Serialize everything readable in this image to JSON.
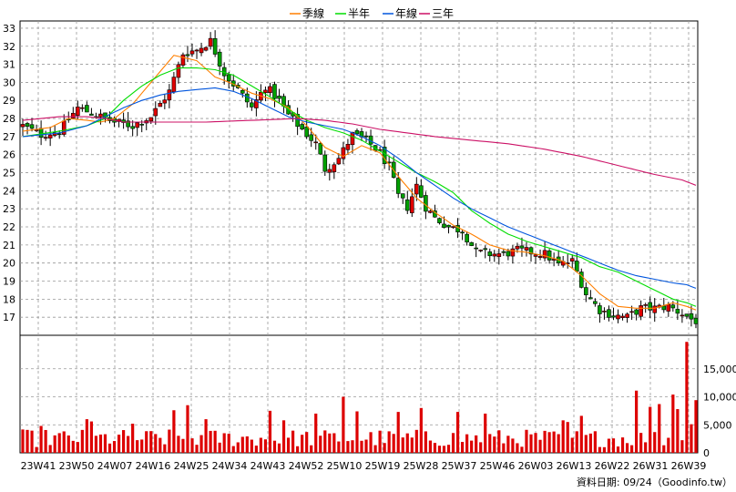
{
  "chart_data": {
    "type": "candlestick+volume",
    "legend": [
      {
        "label": "季線",
        "color": "#ff7f00"
      },
      {
        "label": "半年",
        "color": "#00dd00"
      },
      {
        "label": "年線",
        "color": "#0055dd"
      },
      {
        "label": "三年",
        "color": "#cc1166"
      }
    ],
    "price_axis": {
      "min": 16,
      "max": 33.4,
      "ticks": [
        17,
        18,
        19,
        20,
        21,
        22,
        23,
        24,
        25,
        26,
        27,
        28,
        29,
        30,
        31,
        32,
        33
      ]
    },
    "volume_axis": {
      "min": 0,
      "max": 20000,
      "ticks": [
        0,
        5000,
        10000,
        15000
      ],
      "tick_labels": [
        "0",
        "5,000",
        "10,000",
        "15,000"
      ]
    },
    "x_axis": {
      "labels": [
        "23W41",
        "23W50",
        "24W07",
        "24W16",
        "24W25",
        "24W34",
        "24W43",
        "24W52",
        "25W10",
        "25W19",
        "25W28",
        "25W37",
        "25W46",
        "26W03",
        "26W13",
        "26W22",
        "26W31",
        "26W39"
      ]
    },
    "close_anchors": [
      [
        0,
        27.6
      ],
      [
        4,
        27.1
      ],
      [
        8,
        27.3
      ],
      [
        12,
        28.6
      ],
      [
        16,
        28.2
      ],
      [
        20,
        27.8
      ],
      [
        24,
        27.6
      ],
      [
        28,
        28.1
      ],
      [
        32,
        29.5
      ],
      [
        35,
        31.6
      ],
      [
        38,
        31.8
      ],
      [
        41,
        32.3
      ],
      [
        44,
        30.5
      ],
      [
        47,
        29.6
      ],
      [
        50,
        28.6
      ],
      [
        53,
        29.8
      ],
      [
        56,
        29.0
      ],
      [
        58,
        28.2
      ],
      [
        61,
        27.4
      ],
      [
        64,
        26.6
      ],
      [
        66,
        25.2
      ],
      [
        69,
        25.8
      ],
      [
        72,
        27.1
      ],
      [
        75,
        26.8
      ],
      [
        78,
        26.1
      ],
      [
        80,
        25.3
      ],
      [
        82,
        23.7
      ],
      [
        84,
        23.1
      ],
      [
        86,
        24.3
      ],
      [
        88,
        23.1
      ],
      [
        90,
        22.5
      ],
      [
        93,
        22.0
      ],
      [
        96,
        21.8
      ],
      [
        99,
        20.6
      ],
      [
        102,
        20.5
      ],
      [
        105,
        20.5
      ],
      [
        108,
        20.7
      ],
      [
        111,
        20.6
      ],
      [
        114,
        20.5
      ],
      [
        117,
        19.9
      ],
      [
        120,
        20.1
      ],
      [
        123,
        18.3
      ],
      [
        126,
        17.4
      ],
      [
        129,
        17.1
      ],
      [
        132,
        17.0
      ],
      [
        135,
        17.5
      ],
      [
        138,
        17.5
      ],
      [
        141,
        17.6
      ],
      [
        144,
        17.2
      ],
      [
        146,
        16.9
      ],
      [
        147,
        16.8
      ]
    ],
    "ma_anchors": {
      "季線": [
        [
          0,
          27.3
        ],
        [
          6,
          27.5
        ],
        [
          10,
          28.0
        ],
        [
          14,
          27.9
        ],
        [
          17,
          27.8
        ],
        [
          20,
          28.0
        ],
        [
          24,
          28.8
        ],
        [
          28,
          30.0
        ],
        [
          33,
          31.5
        ],
        [
          38,
          31.2
        ],
        [
          42,
          30.3
        ],
        [
          46,
          29.9
        ],
        [
          50,
          29.4
        ],
        [
          54,
          29.1
        ],
        [
          58,
          28.6
        ],
        [
          62,
          27.6
        ],
        [
          66,
          26.4
        ],
        [
          70,
          25.9
        ],
        [
          74,
          26.5
        ],
        [
          78,
          26.1
        ],
        [
          82,
          24.8
        ],
        [
          86,
          23.6
        ],
        [
          90,
          22.8
        ],
        [
          94,
          22.1
        ],
        [
          98,
          21.6
        ],
        [
          102,
          21.0
        ],
        [
          106,
          20.7
        ],
        [
          110,
          20.6
        ],
        [
          114,
          20.4
        ],
        [
          118,
          20.1
        ],
        [
          122,
          19.3
        ],
        [
          126,
          18.3
        ],
        [
          130,
          17.6
        ],
        [
          134,
          17.5
        ],
        [
          138,
          17.5
        ],
        [
          142,
          17.8
        ],
        [
          145,
          17.6
        ],
        [
          147,
          17.4
        ]
      ],
      "半年": [
        [
          0,
          27.0
        ],
        [
          8,
          27.3
        ],
        [
          14,
          27.6
        ],
        [
          18,
          28.0
        ],
        [
          22,
          29.0
        ],
        [
          26,
          29.8
        ],
        [
          30,
          30.4
        ],
        [
          34,
          30.8
        ],
        [
          38,
          30.8
        ],
        [
          42,
          30.7
        ],
        [
          46,
          30.4
        ],
        [
          50,
          29.8
        ],
        [
          54,
          29.2
        ],
        [
          58,
          28.5
        ],
        [
          62,
          27.9
        ],
        [
          66,
          27.5
        ],
        [
          70,
          27.2
        ],
        [
          74,
          26.8
        ],
        [
          78,
          26.2
        ],
        [
          82,
          25.6
        ],
        [
          86,
          25.0
        ],
        [
          90,
          24.5
        ],
        [
          94,
          23.9
        ],
        [
          98,
          22.9
        ],
        [
          102,
          22.2
        ],
        [
          106,
          21.6
        ],
        [
          110,
          21.2
        ],
        [
          114,
          20.9
        ],
        [
          118,
          20.6
        ],
        [
          122,
          20.3
        ],
        [
          126,
          19.8
        ],
        [
          130,
          19.5
        ],
        [
          134,
          19.0
        ],
        [
          138,
          18.5
        ],
        [
          142,
          18.0
        ],
        [
          145,
          17.8
        ],
        [
          147,
          17.6
        ]
      ],
      "年線": [
        [
          0,
          27.0
        ],
        [
          8,
          27.2
        ],
        [
          14,
          27.6
        ],
        [
          18,
          28.1
        ],
        [
          22,
          28.6
        ],
        [
          26,
          29.0
        ],
        [
          30,
          29.3
        ],
        [
          34,
          29.5
        ],
        [
          38,
          29.6
        ],
        [
          42,
          29.7
        ],
        [
          46,
          29.5
        ],
        [
          50,
          29.1
        ],
        [
          54,
          28.6
        ],
        [
          58,
          28.1
        ],
        [
          62,
          27.8
        ],
        [
          66,
          27.6
        ],
        [
          70,
          27.4
        ],
        [
          74,
          27.0
        ],
        [
          78,
          26.5
        ],
        [
          82,
          25.8
        ],
        [
          86,
          25.0
        ],
        [
          90,
          24.3
        ],
        [
          94,
          23.6
        ],
        [
          98,
          23.0
        ],
        [
          102,
          22.5
        ],
        [
          106,
          22.0
        ],
        [
          110,
          21.6
        ],
        [
          114,
          21.2
        ],
        [
          118,
          20.8
        ],
        [
          122,
          20.4
        ],
        [
          126,
          20.0
        ],
        [
          130,
          19.6
        ],
        [
          134,
          19.3
        ],
        [
          138,
          19.1
        ],
        [
          142,
          18.9
        ],
        [
          145,
          18.8
        ],
        [
          147,
          18.6
        ]
      ],
      "三年": [
        [
          0,
          27.9
        ],
        [
          8,
          28.1
        ],
        [
          14,
          28.1
        ],
        [
          18,
          28.0
        ],
        [
          22,
          27.8
        ],
        [
          30,
          27.8
        ],
        [
          40,
          27.8
        ],
        [
          50,
          27.9
        ],
        [
          60,
          28.0
        ],
        [
          66,
          27.9
        ],
        [
          72,
          27.7
        ],
        [
          78,
          27.4
        ],
        [
          84,
          27.2
        ],
        [
          90,
          27.0
        ],
        [
          98,
          26.8
        ],
        [
          106,
          26.6
        ],
        [
          114,
          26.3
        ],
        [
          122,
          25.9
        ],
        [
          130,
          25.4
        ],
        [
          138,
          24.9
        ],
        [
          144,
          24.6
        ],
        [
          147,
          24.3
        ]
      ]
    },
    "volume_spikes": [
      [
        4,
        4800
      ],
      [
        14,
        6000
      ],
      [
        15,
        5600
      ],
      [
        24,
        5200
      ],
      [
        33,
        7600
      ],
      [
        36,
        8500
      ],
      [
        40,
        6000
      ],
      [
        54,
        7500
      ],
      [
        57,
        5800
      ],
      [
        64,
        7000
      ],
      [
        70,
        10000
      ],
      [
        73,
        7400
      ],
      [
        82,
        7300
      ],
      [
        87,
        8000
      ],
      [
        95,
        7300
      ],
      [
        101,
        7000
      ],
      [
        118,
        5800
      ],
      [
        119,
        5500
      ],
      [
        122,
        6600
      ],
      [
        134,
        11100
      ],
      [
        137,
        8200
      ],
      [
        139,
        8700
      ],
      [
        142,
        10400
      ],
      [
        143,
        7800
      ],
      [
        145,
        19800
      ],
      [
        146,
        5100
      ],
      [
        147,
        9400
      ]
    ],
    "footer": "資料日期: 09/24（Goodinfo.tw）"
  }
}
